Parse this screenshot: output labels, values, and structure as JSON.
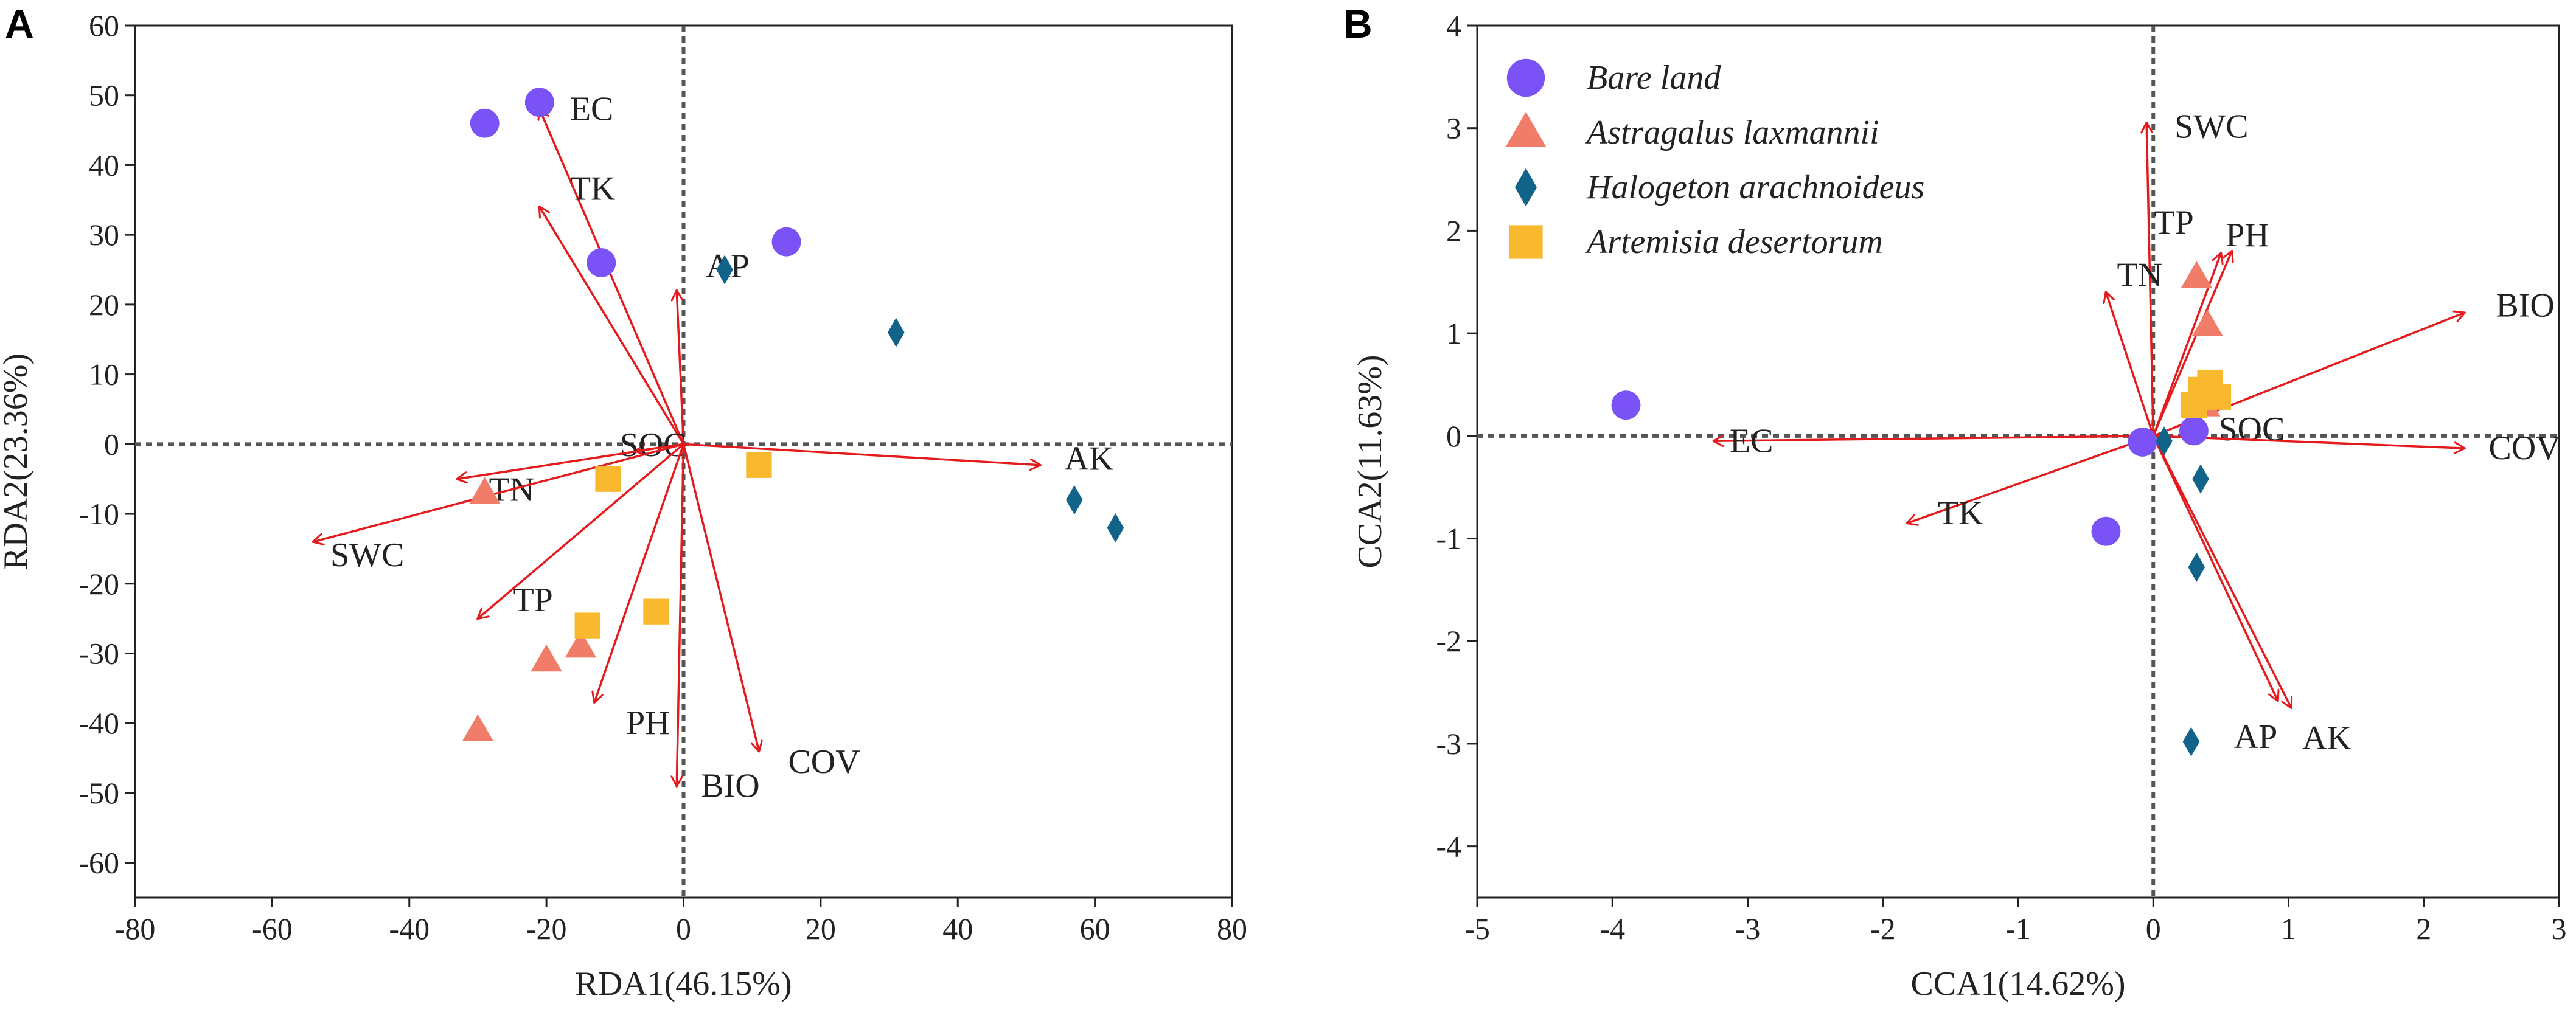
{
  "chart_data": [
    {
      "type": "scatter",
      "subtype": "rda-biplot",
      "panel_label": "A",
      "xlabel": "RDA1(46.15%)",
      "ylabel": "RDA2(23.36%)",
      "xlim": [
        -80,
        80
      ],
      "ylim": [
        -65,
        60
      ],
      "xticks": [
        -80,
        -60,
        -40,
        -20,
        0,
        20,
        40,
        60,
        80
      ],
      "yticks": [
        -60,
        -50,
        -40,
        -30,
        -20,
        -10,
        0,
        10,
        20,
        30,
        40,
        50,
        60
      ],
      "origin_lines": "dotted",
      "series": [
        {
          "name": "Bare land",
          "marker": "circle",
          "color": "#7b52f5",
          "points": [
            [
              -29,
              46
            ],
            [
              -21,
              49
            ],
            [
              -12,
              26
            ],
            [
              15,
              29
            ]
          ]
        },
        {
          "name": "Astragalus laxmannii",
          "marker": "triangle",
          "color": "#f07c69",
          "points": [
            [
              -29,
              -7
            ],
            [
              -20,
              -31
            ],
            [
              -15,
              -29
            ],
            [
              -30,
              -41
            ]
          ]
        },
        {
          "name": "Halogeton arachnoideus",
          "marker": "diamond",
          "color": "#11638a",
          "points": [
            [
              6,
              25
            ],
            [
              31,
              16
            ],
            [
              57,
              -8
            ],
            [
              63,
              -12
            ]
          ]
        },
        {
          "name": "Artemisia desertorum",
          "marker": "square",
          "color": "#f9b92f",
          "points": [
            [
              -11,
              -5
            ],
            [
              11,
              -3
            ],
            [
              -14,
              -26
            ],
            [
              -4,
              -24
            ]
          ]
        }
      ],
      "vectors": [
        {
          "label": "EC",
          "x": -21,
          "y": 48
        },
        {
          "label": "TK",
          "x": -21,
          "y": 34
        },
        {
          "label": "AP",
          "x": -1,
          "y": 22
        },
        {
          "label": "AK",
          "x": 52,
          "y": -3
        },
        {
          "label": "SOC",
          "x": -7,
          "y": -1
        },
        {
          "label": "TN",
          "x": -33,
          "y": -5
        },
        {
          "label": "SWC",
          "x": -54,
          "y": -14
        },
        {
          "label": "TP",
          "x": -30,
          "y": -25
        },
        {
          "label": "PH",
          "x": -13,
          "y": -37
        },
        {
          "label": "COV",
          "x": 11,
          "y": -44
        },
        {
          "label": "BIO",
          "x": -1,
          "y": -49
        }
      ]
    },
    {
      "type": "scatter",
      "subtype": "cca-biplot",
      "panel_label": "B",
      "xlabel": "CCA1(14.62%)",
      "ylabel": "CCA2(11.63%)",
      "xlim": [
        -5,
        3
      ],
      "ylim": [
        -4.5,
        4
      ],
      "xticks": [
        -5,
        -4,
        -3,
        -2,
        -1,
        0,
        1,
        2,
        3
      ],
      "yticks": [
        -4,
        -3,
        -2,
        -1,
        0,
        1,
        2,
        3,
        4
      ],
      "origin_lines": "dotted",
      "legend": {
        "position": "top-left",
        "entries": [
          "Bare land",
          "Astragalus laxmannii",
          "Halogeton arachnoideus",
          "Artemisia desertorum"
        ]
      },
      "series": [
        {
          "name": "Bare land",
          "marker": "circle",
          "color": "#7b52f5",
          "points": [
            [
              -3.9,
              0.3
            ],
            [
              -0.35,
              -0.93
            ],
            [
              -0.08,
              -0.06
            ],
            [
              0.3,
              0.05
            ]
          ]
        },
        {
          "name": "Astragalus laxmannii",
          "marker": "triangle",
          "color": "#f07c69",
          "points": [
            [
              0.32,
              1.55
            ],
            [
              0.4,
              1.08
            ],
            [
              0.38,
              0.3
            ]
          ]
        },
        {
          "name": "Halogeton arachnoideus",
          "marker": "diamond",
          "color": "#11638a",
          "points": [
            [
              0.08,
              -0.05
            ],
            [
              0.35,
              -0.42
            ],
            [
              0.32,
              -1.28
            ],
            [
              0.28,
              -2.98
            ]
          ]
        },
        {
          "name": "Artemisia desertorum",
          "marker": "square",
          "color": "#f9b92f",
          "points": [
            [
              0.42,
              0.52
            ],
            [
              0.35,
              0.45
            ],
            [
              0.48,
              0.38
            ],
            [
              0.3,
              0.3
            ]
          ]
        }
      ],
      "vectors": [
        {
          "label": "SWC",
          "x": -0.05,
          "y": 3.05
        },
        {
          "label": "TP",
          "x": 0.5,
          "y": 1.78
        },
        {
          "label": "PH",
          "x": 0.58,
          "y": 1.8
        },
        {
          "label": "TN",
          "x": -0.35,
          "y": 1.4
        },
        {
          "label": "BIO",
          "x": 2.3,
          "y": 1.2
        },
        {
          "label": "SOC",
          "x": 0.32,
          "y": -0.02
        },
        {
          "label": "COV",
          "x": 2.3,
          "y": -0.12
        },
        {
          "label": "EC",
          "x": -3.25,
          "y": -0.05
        },
        {
          "label": "TK",
          "x": -1.82,
          "y": -0.85
        },
        {
          "label": "AP",
          "x": 0.92,
          "y": -2.58
        },
        {
          "label": "AK",
          "x": 1.02,
          "y": -2.65
        }
      ]
    }
  ]
}
